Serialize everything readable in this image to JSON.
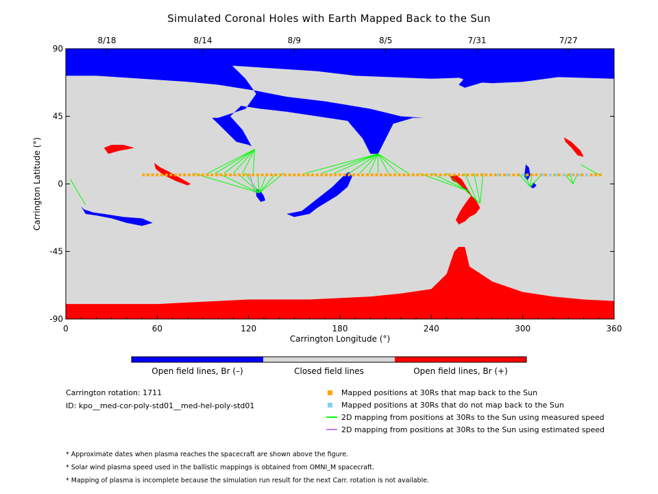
{
  "title": "Simulated Coronal Holes with Earth Mapped Back to the Sun",
  "chart_data": {
    "type": "map",
    "xlabel": "Carrington Longitude (°)",
    "ylabel": "Carrington Latitude (°)",
    "xlim": [
      0,
      360
    ],
    "ylim": [
      -90,
      90
    ],
    "x_ticks": [
      0,
      60,
      120,
      180,
      240,
      300,
      360
    ],
    "y_ticks": [
      90,
      45,
      0,
      -45,
      -90
    ],
    "top_date_ticks": [
      {
        "lon": 27,
        "label": "8/18"
      },
      {
        "lon": 90,
        "label": "8/14"
      },
      {
        "lon": 150,
        "label": "8/9"
      },
      {
        "lon": 210,
        "label": "8/5"
      },
      {
        "lon": 270,
        "label": "7/31"
      },
      {
        "lon": 330,
        "label": "7/27"
      }
    ],
    "colors": {
      "closed": "#d9d9d9",
      "open_negative": "#0000ff",
      "open_positive": "#ff0000",
      "mapped": "#ffa500",
      "unmapped": "#87cefa",
      "measured_line": "#00ff00",
      "estimated_line": "#bf80ff"
    },
    "regions": {
      "negative": [
        [
          [
            0,
            90
          ],
          [
            360,
            90
          ],
          [
            360,
            70
          ],
          [
            295,
            72
          ],
          [
            240,
            70
          ],
          [
            190,
            72
          ],
          [
            165,
            75
          ],
          [
            120,
            78
          ],
          [
            90,
            80
          ],
          [
            0,
            80
          ]
        ],
        [
          [
            0,
            90
          ],
          [
            360,
            90
          ],
          [
            360,
            73
          ],
          [
            330,
            73
          ],
          [
            325,
            85
          ],
          [
            330,
            90
          ]
        ],
        [
          [
            0,
            90
          ],
          [
            100,
            90
          ],
          [
            110,
            78
          ],
          [
            118,
            70
          ],
          [
            125,
            60
          ],
          [
            118,
            50
          ],
          [
            100,
            44
          ],
          [
            96,
            44
          ],
          [
            102,
            38
          ],
          [
            112,
            28
          ],
          [
            120,
            26
          ],
          [
            122,
            25
          ],
          [
            116,
            36
          ],
          [
            108,
            45
          ],
          [
            115,
            52
          ],
          [
            128,
            50
          ],
          [
            145,
            48
          ],
          [
            165,
            45
          ],
          [
            185,
            42
          ],
          [
            195,
            30
          ],
          [
            200,
            20
          ],
          [
            205,
            20
          ],
          [
            210,
            30
          ],
          [
            215,
            40
          ],
          [
            228,
            44
          ],
          [
            235,
            44
          ],
          [
            220,
            45
          ],
          [
            200,
            50
          ],
          [
            170,
            55
          ],
          [
            145,
            58
          ],
          [
            125,
            62
          ],
          [
            100,
            66
          ],
          [
            80,
            68
          ],
          [
            50,
            70
          ],
          [
            20,
            72
          ],
          [
            0,
            72
          ]
        ],
        [
          [
            255,
            72
          ],
          [
            270,
            82
          ],
          [
            295,
            88
          ],
          [
            330,
            90
          ],
          [
            360,
            90
          ],
          [
            360,
            72
          ],
          [
            330,
            72
          ],
          [
            300,
            68
          ],
          [
            280,
            67
          ],
          [
            265,
            68
          ]
        ],
        [
          [
            258,
            66
          ],
          [
            265,
            74
          ],
          [
            285,
            82
          ],
          [
            310,
            88
          ],
          [
            340,
            90
          ],
          [
            360,
            90
          ],
          [
            360,
            73
          ],
          [
            320,
            73
          ],
          [
            290,
            72
          ],
          [
            275,
            68
          ],
          [
            262,
            64
          ]
        ],
        [
          [
            183,
            6
          ],
          [
            186,
            8
          ],
          [
            188,
            5
          ],
          [
            185,
            -2
          ],
          [
            178,
            -8
          ],
          [
            165,
            -16
          ],
          [
            160,
            -20
          ],
          [
            150,
            -22
          ],
          [
            145,
            -20
          ],
          [
            155,
            -18
          ],
          [
            165,
            -10
          ],
          [
            175,
            -2
          ]
        ],
        [
          [
            10,
            -15
          ],
          [
            12,
            -17
          ],
          [
            18,
            -19
          ],
          [
            25,
            -20
          ],
          [
            38,
            -22
          ],
          [
            50,
            -23
          ],
          [
            57,
            -26
          ],
          [
            50,
            -28
          ],
          [
            40,
            -26
          ],
          [
            30,
            -23
          ],
          [
            20,
            -21
          ],
          [
            13,
            -20
          ]
        ],
        [
          [
            125,
            -3
          ],
          [
            128,
            -5
          ],
          [
            130,
            -8
          ],
          [
            131,
            -11
          ],
          [
            128,
            -12
          ],
          [
            125,
            -8
          ]
        ],
        [
          [
            302,
            13
          ],
          [
            304,
            11
          ],
          [
            305,
            6
          ],
          [
            303,
            2
          ],
          [
            301,
            5
          ]
        ],
        [
          [
            305,
            -2
          ],
          [
            307,
            -3
          ],
          [
            309,
            -1
          ],
          [
            307,
            1
          ]
        ]
      ],
      "positive": [
        [
          [
            0,
            -90
          ],
          [
            360,
            -90
          ],
          [
            360,
            -78
          ],
          [
            340,
            -77
          ],
          [
            320,
            -75
          ],
          [
            300,
            -72
          ],
          [
            280,
            -65
          ],
          [
            265,
            -55
          ],
          [
            262,
            -42
          ],
          [
            258,
            -42
          ],
          [
            255,
            -45
          ],
          [
            250,
            -60
          ],
          [
            240,
            -70
          ],
          [
            220,
            -73
          ],
          [
            200,
            -75
          ],
          [
            180,
            -76
          ],
          [
            160,
            -77
          ],
          [
            140,
            -77
          ],
          [
            120,
            -77
          ],
          [
            100,
            -78
          ],
          [
            80,
            -79
          ],
          [
            60,
            -80
          ],
          [
            40,
            -80
          ],
          [
            20,
            -80
          ],
          [
            0,
            -80
          ]
        ],
        [
          [
            252,
            5
          ],
          [
            256,
            6
          ],
          [
            260,
            3
          ],
          [
            263,
            -2
          ],
          [
            266,
            -7
          ],
          [
            270,
            -12
          ],
          [
            272,
            -16
          ],
          [
            269,
            -20
          ],
          [
            265,
            -22
          ],
          [
            262,
            -25
          ],
          [
            258,
            -27
          ],
          [
            256,
            -24
          ],
          [
            259,
            -18
          ],
          [
            263,
            -12
          ],
          [
            266,
            -8
          ],
          [
            262,
            -4
          ],
          [
            258,
            0
          ],
          [
            254,
            2
          ]
        ],
        [
          [
            25,
            24
          ],
          [
            30,
            26
          ],
          [
            38,
            26
          ],
          [
            45,
            24
          ],
          [
            40,
            23
          ],
          [
            35,
            22
          ],
          [
            28,
            20
          ]
        ],
        [
          [
            58,
            14
          ],
          [
            62,
            11
          ],
          [
            68,
            8
          ],
          [
            75,
            4
          ],
          [
            82,
            0
          ],
          [
            80,
            -1
          ],
          [
            72,
            2
          ],
          [
            64,
            6
          ],
          [
            59,
            10
          ]
        ],
        [
          [
            327,
            31
          ],
          [
            332,
            28
          ],
          [
            338,
            22
          ],
          [
            340,
            18
          ],
          [
            336,
            19
          ],
          [
            332,
            24
          ],
          [
            328,
            28
          ]
        ]
      ]
    },
    "mapped_positions_lon": [
      51,
      54,
      57,
      60,
      63,
      66,
      69,
      72,
      75,
      78,
      81,
      84,
      87,
      90,
      93,
      96,
      99,
      102,
      105,
      108,
      111,
      114,
      117,
      120,
      123,
      126,
      129,
      132,
      135,
      138,
      141,
      144,
      147,
      150,
      153,
      156,
      159,
      162,
      165,
      168,
      171,
      174,
      177,
      180,
      183,
      186,
      189,
      192,
      195,
      198,
      201,
      204,
      207,
      210,
      213,
      216,
      219,
      222,
      225,
      228,
      231,
      234,
      237,
      240,
      243,
      246,
      249,
      252,
      255,
      258,
      261,
      264,
      267,
      270,
      273,
      276,
      279,
      282,
      285,
      288,
      291,
      294,
      297,
      300,
      303,
      306,
      309,
      312,
      315,
      318,
      321,
      324,
      327,
      330,
      333,
      336,
      339,
      342,
      345,
      348,
      351
    ],
    "unmapped_positions_lon": [
      284,
      290,
      300,
      313,
      318,
      322,
      327,
      332,
      337,
      342
    ],
    "positions_lat": 6,
    "measured_lines": [
      [
        [
          3,
          3
        ],
        [
          13,
          -14
        ]
      ],
      [
        [
          93,
          7
        ],
        [
          124,
          23
        ]
      ],
      [
        [
          98,
          7
        ],
        [
          124,
          23
        ]
      ],
      [
        [
          104,
          7
        ],
        [
          124,
          23
        ]
      ],
      [
        [
          110,
          7
        ],
        [
          124,
          23
        ]
      ],
      [
        [
          116,
          7
        ],
        [
          124,
          23
        ]
      ],
      [
        [
          123,
          7
        ],
        [
          124,
          23
        ]
      ],
      [
        [
          84,
          7
        ],
        [
          127,
          -6
        ]
      ],
      [
        [
          100,
          7
        ],
        [
          127,
          -6
        ]
      ],
      [
        [
          113,
          7
        ],
        [
          127,
          -6
        ]
      ],
      [
        [
          118,
          7
        ],
        [
          127,
          -6
        ]
      ],
      [
        [
          126,
          7
        ],
        [
          127,
          -6
        ]
      ],
      [
        [
          132,
          7
        ],
        [
          127,
          -6
        ]
      ],
      [
        [
          138,
          7
        ],
        [
          127,
          -6
        ]
      ],
      [
        [
          143,
          7
        ],
        [
          127,
          -6
        ]
      ],
      [
        [
          157,
          7
        ],
        [
          205,
          20
        ]
      ],
      [
        [
          168,
          7
        ],
        [
          205,
          20
        ]
      ],
      [
        [
          176,
          7
        ],
        [
          205,
          20
        ]
      ],
      [
        [
          186,
          7
        ],
        [
          205,
          20
        ]
      ],
      [
        [
          193,
          7
        ],
        [
          205,
          20
        ]
      ],
      [
        [
          199,
          7
        ],
        [
          205,
          20
        ]
      ],
      [
        [
          205,
          7
        ],
        [
          205,
          20
        ]
      ],
      [
        [
          212,
          7
        ],
        [
          205,
          20
        ]
      ],
      [
        [
          218,
          7
        ],
        [
          205,
          20
        ]
      ],
      [
        [
          225,
          7
        ],
        [
          205,
          20
        ]
      ],
      [
        [
          232,
          7
        ],
        [
          265,
          -5
        ]
      ],
      [
        [
          240,
          7
        ],
        [
          265,
          -5
        ]
      ],
      [
        [
          250,
          7
        ],
        [
          272,
          -13
        ]
      ],
      [
        [
          262,
          7
        ],
        [
          270,
          -12
        ]
      ],
      [
        [
          268,
          7
        ],
        [
          272,
          -13
        ]
      ],
      [
        [
          274,
          7
        ],
        [
          272,
          -13
        ]
      ],
      [
        [
          297,
          7
        ],
        [
          305,
          -2
        ]
      ],
      [
        [
          301,
          7
        ],
        [
          305,
          -2
        ]
      ],
      [
        [
          306,
          7
        ],
        [
          305,
          -2
        ]
      ],
      [
        [
          313,
          7
        ],
        [
          305,
          -2
        ]
      ],
      [
        [
          327,
          7
        ],
        [
          333,
          0
        ]
      ],
      [
        [
          331,
          7
        ],
        [
          333,
          0
        ]
      ],
      [
        [
          336,
          7
        ],
        [
          333,
          0
        ]
      ],
      [
        [
          338,
          13
        ],
        [
          350,
          6
        ]
      ]
    ],
    "estimated_lines": [
      [
        [
          121,
          6
        ],
        [
          124,
          -6
        ]
      ]
    ]
  },
  "colorbar": {
    "labels": [
      "Open field lines, Br (–)",
      "Closed field lines",
      "Open field lines, Br (+)"
    ]
  },
  "info": {
    "rotation": "Carrington rotation: 1711",
    "id": "ID: kpo__med-cor-poly-std01__med-hel-poly-std01"
  },
  "legend": [
    {
      "label": "Mapped positions at 30Rs that map back to the Sun",
      "kind": "square",
      "color": "#ffa500"
    },
    {
      "label": "Mapped positions at 30Rs that do not map back to the Sun",
      "kind": "square",
      "color": "#87cefa"
    },
    {
      "label": "2D mapping from positions at 30Rs to the Sun using measured speed",
      "kind": "line",
      "color": "#00ff00"
    },
    {
      "label": "2D mapping from positions at 30Rs to the Sun using estimated speed",
      "kind": "line",
      "color": "#bf80ff"
    }
  ],
  "notes": [
    "* Approximate dates when plasma reaches the spacecraft are shown above the figure.",
    "* Solar wind plasma speed used in the ballistic mappings is obtained from OMNI_M spacecraft.",
    "* Mapping of plasma is incomplete because the simulation run result for the next Carr. rotation is not available."
  ]
}
